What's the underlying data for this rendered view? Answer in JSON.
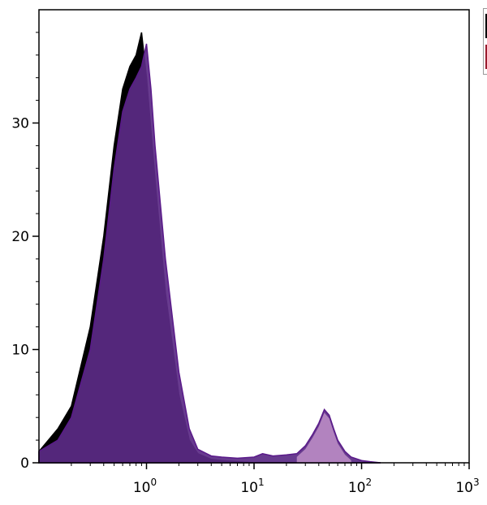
{
  "chart_data": {
    "type": "area",
    "title": "",
    "xlabel": "",
    "ylabel": "",
    "xscale": "log",
    "xlim": [
      0.1,
      1000
    ],
    "ylim": [
      0,
      40
    ],
    "x_ticks": [
      {
        "base": "10",
        "exp": "0",
        "value": 1
      },
      {
        "base": "10",
        "exp": "1",
        "value": 10
      },
      {
        "base": "10",
        "exp": "2",
        "value": 100
      },
      {
        "base": "10",
        "exp": "3",
        "value": 1000
      }
    ],
    "y_ticks": [
      {
        "label": "0",
        "value": 0
      },
      {
        "label": "10",
        "value": 10
      },
      {
        "label": "20",
        "value": 20
      },
      {
        "label": "30",
        "value": 30
      }
    ],
    "colors": {
      "control": "#000000",
      "stained_fill": "#5b2a86",
      "stained_line": "#5a1a8a",
      "positive_fill": "#c090c8"
    },
    "series": [
      {
        "x": [
          0.1,
          0.15,
          0.2,
          0.3,
          0.4,
          0.5,
          0.6,
          0.7,
          0.8,
          0.9,
          1.0,
          1.2,
          1.5,
          2.0,
          2.5,
          3.0,
          4.0,
          5.0,
          7.0,
          10,
          20,
          50,
          100,
          150
        ],
        "y": [
          1,
          3,
          5,
          12,
          20,
          28,
          33,
          35,
          36,
          38,
          34,
          25,
          15,
          6,
          2,
          0.8,
          0.3,
          0.2,
          0.1,
          0,
          0,
          0,
          0,
          0
        ]
      },
      {
        "x": [
          0.1,
          0.15,
          0.2,
          0.3,
          0.4,
          0.5,
          0.6,
          0.7,
          0.8,
          0.9,
          1.0,
          1.1,
          1.2,
          1.5,
          2.0,
          2.5,
          3.0,
          4.0,
          5.0,
          7.0,
          10,
          12,
          15,
          20,
          25,
          30,
          35,
          40,
          45,
          50,
          55,
          60,
          70,
          80,
          100,
          120,
          150
        ],
        "y": [
          1,
          2,
          4,
          10,
          18,
          26,
          31,
          33,
          34,
          35,
          37,
          33,
          28,
          18,
          8,
          3,
          1.2,
          0.6,
          0.5,
          0.4,
          0.5,
          0.8,
          0.6,
          0.7,
          0.8,
          1.5,
          2.5,
          3.5,
          4.7,
          4.2,
          3.0,
          2.0,
          1.0,
          0.5,
          0.2,
          0.1,
          0
        ]
      }
    ]
  }
}
